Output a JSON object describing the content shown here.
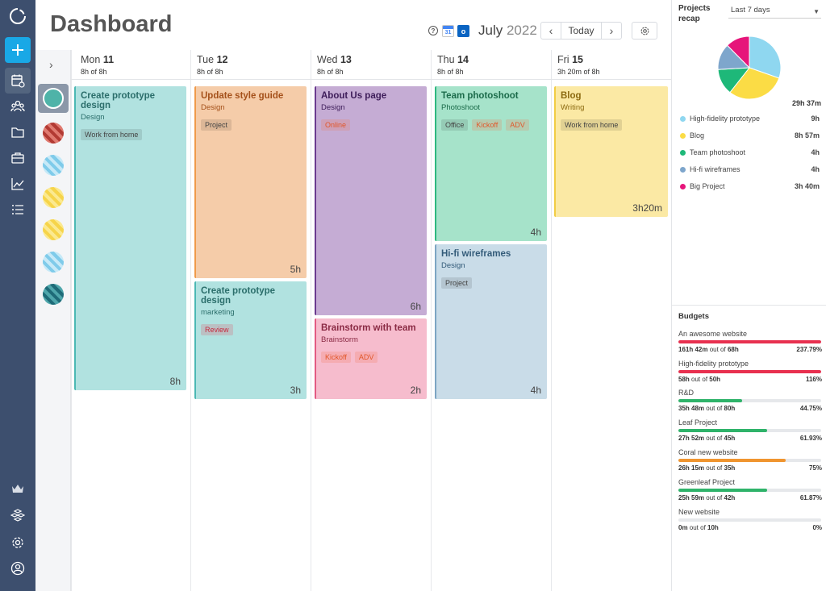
{
  "header": {
    "title": "Dashboard",
    "month": "July",
    "year": "2022",
    "today_label": "Today",
    "help_icon": "?"
  },
  "days": [
    {
      "weekday": "Mon",
      "date": "11",
      "hours": "8h  of 8h"
    },
    {
      "weekday": "Tue",
      "date": "12",
      "hours": "8h  of 8h"
    },
    {
      "weekday": "Wed",
      "date": "13",
      "hours": "8h  of 8h"
    },
    {
      "weekday": "Thu",
      "date": "14",
      "hours": "8h  of 8h"
    },
    {
      "weekday": "Fri",
      "date": "15",
      "hours": "3h 20m  of 8h"
    }
  ],
  "tasks": [
    {
      "title": "Create prototype design",
      "subtitle": "Design",
      "tags": [
        "Work from home"
      ],
      "duration": "8h",
      "color": "#b1e2e0",
      "bar": "#4cb8b4",
      "title_color": "#2b6e6b"
    },
    {
      "title": "Update style guide",
      "subtitle": "Design",
      "tags": [
        "Project"
      ],
      "duration": "5h",
      "color": "#f5cca9",
      "bar": "#ef9a4a",
      "title_color": "#a4501a"
    },
    {
      "title": "Create prototype design",
      "subtitle": "marketing",
      "tags": [
        "Review"
      ],
      "duration": "3h",
      "color": "#b1e2e0",
      "bar": "#4cb8b4",
      "title_color": "#2b6e6b"
    },
    {
      "title": "About Us page",
      "subtitle": "Design",
      "tags": [
        "Online"
      ],
      "duration": "6h",
      "color": "#c5acd4",
      "bar": "#6a3b8f",
      "title_color": "#3d1c59"
    },
    {
      "title": "Brainstorm with team",
      "subtitle": "Brainstorm",
      "tags": [
        "Kickoff",
        "ADV"
      ],
      "duration": "2h",
      "color": "#f6bccd",
      "bar": "#e35a82",
      "title_color": "#8a2a44"
    },
    {
      "title": "Team photoshoot",
      "subtitle": "Photoshoot",
      "tags": [
        "Office",
        "Kickoff",
        "ADV"
      ],
      "duration": "4h",
      "color": "#a6e3ca",
      "bar": "#2fb880",
      "title_color": "#1b6b4a"
    },
    {
      "title": "Hi-fi wireframes",
      "subtitle": "Design",
      "tags": [
        "Project"
      ],
      "duration": "4h",
      "color": "#c9dce8",
      "bar": "#7da5c3",
      "title_color": "#335b79"
    },
    {
      "title": "Blog",
      "subtitle": "Writing",
      "tags": [
        "Work from home"
      ],
      "duration": "3h20m",
      "color": "#fbe9a4",
      "bar": "#f1cd45",
      "title_color": "#8c6a10"
    }
  ],
  "recap": {
    "title": "Projects recap",
    "range": "Last 7 days",
    "total": "29h 37m",
    "items": [
      {
        "label": "High-fidelity prototype",
        "value": "9h",
        "color": "#8fd7f0",
        "hours": 9
      },
      {
        "label": "Blog",
        "value": "8h 57m",
        "color": "#fbdc45",
        "hours": 8.95
      },
      {
        "label": "Team photoshoot",
        "value": "4h",
        "color": "#1eb879",
        "hours": 4
      },
      {
        "label": "Hi-fi wireframes",
        "value": "4h",
        "color": "#7ea6cc",
        "hours": 4
      },
      {
        "label": "Big Project",
        "value": "3h 40m",
        "color": "#e6157a",
        "hours": 3.67
      }
    ]
  },
  "budgets": {
    "title": "Budgets",
    "out_of": "out of",
    "items": [
      {
        "name": "An awesome website",
        "used": "161h 42m",
        "total": "68h",
        "percent": "237.79%",
        "fill": 1.0,
        "color": "#e8304f"
      },
      {
        "name": "High-fidelity prototype",
        "used": "58h",
        "total": "50h",
        "percent": "116%",
        "fill": 1.0,
        "color": "#e8304f"
      },
      {
        "name": "R&D",
        "used": "35h 48m",
        "total": "80h",
        "percent": "44.75%",
        "fill": 0.4475,
        "color": "#2fb36a"
      },
      {
        "name": "Leaf Project",
        "used": "27h 52m",
        "total": "45h",
        "percent": "61.93%",
        "fill": 0.6193,
        "color": "#2fb36a"
      },
      {
        "name": "Coral new website",
        "used": "26h 15m",
        "total": "35h",
        "percent": "75%",
        "fill": 0.75,
        "color": "#f0952f"
      },
      {
        "name": "Greenleaf Project",
        "used": "25h 59m",
        "total": "42h",
        "percent": "61.87%",
        "fill": 0.6187,
        "color": "#2fb36a"
      },
      {
        "name": "New website",
        "used": "0m",
        "total": "10h",
        "percent": "0%",
        "fill": 0,
        "color": "#2fb36a"
      }
    ]
  },
  "people": [
    {
      "colors": [
        "#b23a33",
        "#e07a70"
      ]
    },
    {
      "colors": [
        "#7fcbea",
        "#c6e9f7"
      ]
    },
    {
      "colors": [
        "#f6d44a",
        "#fbe98f"
      ]
    },
    {
      "colors": [
        "#f6d44a",
        "#fbe98f"
      ]
    },
    {
      "colors": [
        "#7fcbea",
        "#c6e9f7"
      ]
    },
    {
      "colors": [
        "#1e6b78",
        "#4ea6ab"
      ]
    }
  ]
}
